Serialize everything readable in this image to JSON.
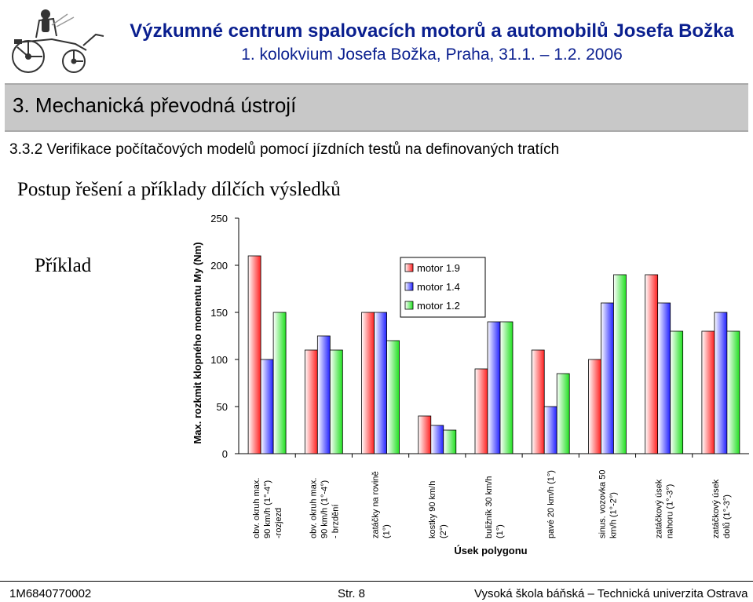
{
  "header": {
    "institute_title": "Výzkumné centrum spalovacích motorů a automobilů Josefa Božka",
    "conference_title": "1. kolokvium Josefa Božka, Praha, 31.1. – 1.2. 2006",
    "logo_icon": "vintage-automobile-icon"
  },
  "section": {
    "title": "3. Mechanická převodná ústrojí",
    "subsection": "3.3.2 Verifikace počítačových modelů pomocí jízdních testů na definovaných tratích"
  },
  "slide": {
    "heading": "Postup řešení a příklady dílčích výsledků",
    "example_label": "Příklad"
  },
  "footer": {
    "code": "1M6840770002",
    "page": "Str. 8",
    "school": "Vysoká škola báňská – Technická univerzita Ostrava"
  },
  "chart_data": {
    "type": "bar",
    "title": "",
    "xlabel": "Úsek polygonu",
    "ylabel": "Max. rozkmit klopného momentu My (Nm)",
    "ylim": [
      0,
      250
    ],
    "yticks": [
      0,
      50,
      100,
      150,
      200,
      250
    ],
    "grid": false,
    "legend_position": "top-center",
    "categories": [
      [
        "obv. okruh max.",
        "90 km/h    (1°-4°)",
        "-rozjezd"
      ],
      [
        "obv. okruh max.",
        "90 km/h    (1°-4°)",
        "- brzdění"
      ],
      [
        "zatáčky na rovině",
        "(1°)"
      ],
      [
        "kostky 90 km/h",
        "(2°)"
      ],
      [
        "buližník 30 km/h",
        "(1°)"
      ],
      [
        "pavé 20 km/h (1°)"
      ],
      [
        "sinus. vozovka 50",
        "km/h (1°-2°)"
      ],
      [
        "zatáčkový úsek",
        "nahoru  (1°-3°)"
      ],
      [
        "zatáčkový úsek",
        "dolů    (1°-3°)"
      ]
    ],
    "series": [
      {
        "name": "motor 1.9",
        "color": "#ff2020",
        "values": [
          210,
          110,
          150,
          40,
          90,
          110,
          100,
          190,
          130
        ]
      },
      {
        "name": "motor 1.4",
        "color": "#2020ff",
        "values": [
          100,
          125,
          150,
          30,
          140,
          50,
          160,
          160,
          150
        ]
      },
      {
        "name": "motor 1.2",
        "color": "#20e020",
        "values": [
          150,
          110,
          120,
          25,
          140,
          85,
          190,
          130,
          130
        ]
      }
    ]
  }
}
